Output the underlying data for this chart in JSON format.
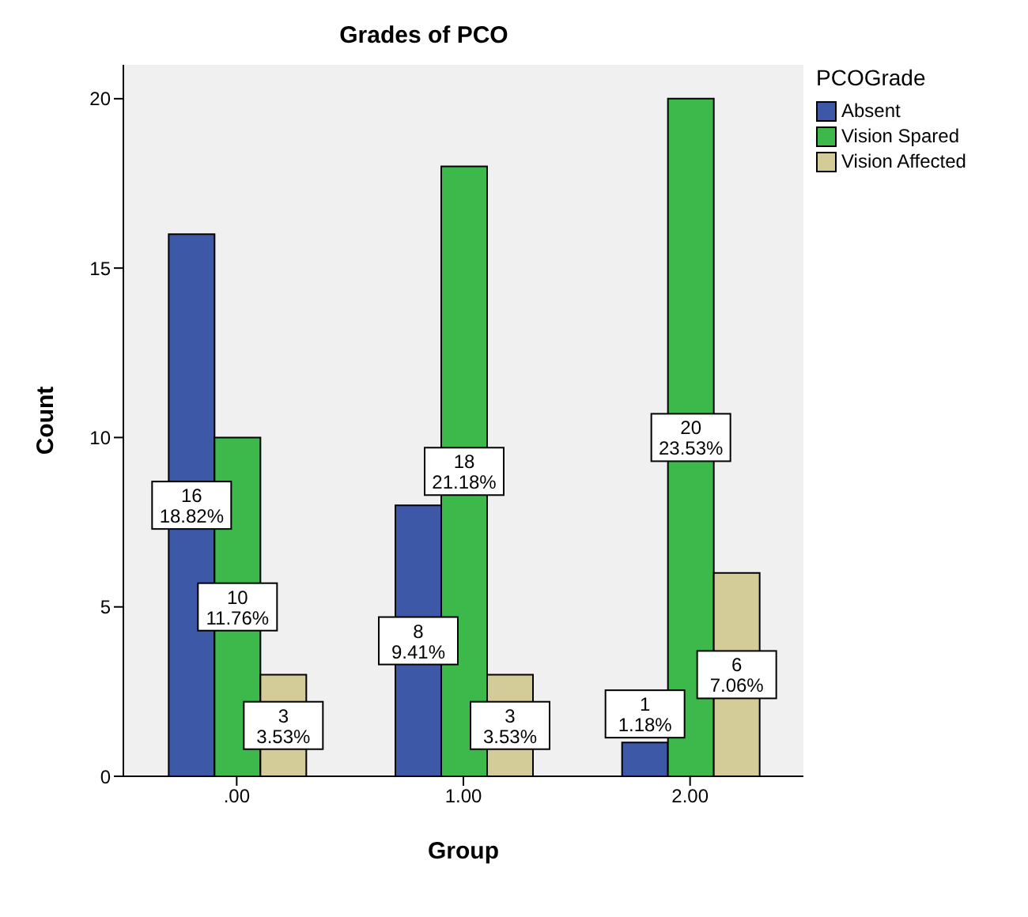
{
  "chart_data": {
    "type": "bar",
    "title": "Grades of PCO",
    "xlabel": "Group",
    "ylabel": "Count",
    "legend_title": "PCOGrade",
    "categories": [
      ".00",
      "1.00",
      "2.00"
    ],
    "series": [
      {
        "name": "Absent",
        "color": "#3e58a8",
        "values": [
          16,
          8,
          1
        ],
        "value_labels": [
          "16\n18.82%",
          "8\n9.41%",
          "1\n1.18%"
        ]
      },
      {
        "name": "Vision Spared",
        "color": "#3cb94a",
        "values": [
          10,
          18,
          20
        ],
        "value_labels": [
          "10\n11.76%",
          "18\n21.18%",
          "20\n23.53%"
        ]
      },
      {
        "name": "Vision Affected",
        "color": "#d4cc98",
        "values": [
          3,
          3,
          6
        ],
        "value_labels": [
          "3\n3.53%",
          "3\n3.53%",
          "6\n7.06%"
        ]
      }
    ],
    "ylim": [
      0,
      21
    ],
    "yticks": [
      0,
      5,
      10,
      15,
      20
    ],
    "grid": false,
    "legend": "top right"
  }
}
